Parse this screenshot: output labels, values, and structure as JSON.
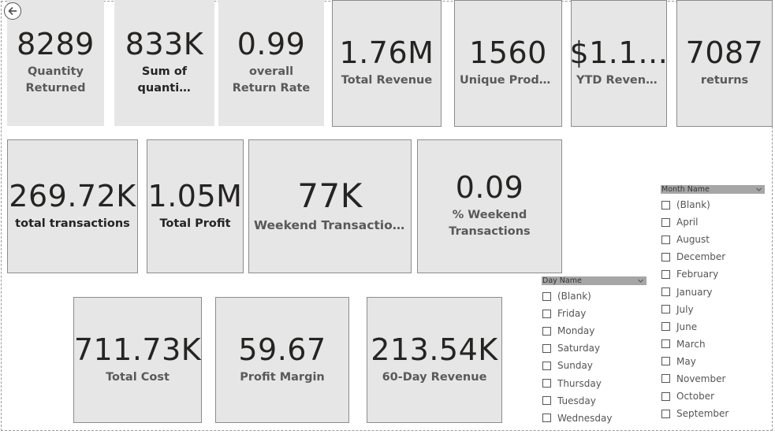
{
  "cards": {
    "quantity_returned": {
      "value": "8289",
      "label": "Quantity Returned"
    },
    "sum_of_quantity": {
      "value": "833K",
      "label": "Sum of quantity"
    },
    "overall_return_rate": {
      "value": "0.99",
      "label": "overall Return Rate"
    },
    "total_revenue": {
      "value": "1.76M",
      "label": "Total Revenue"
    },
    "unique_products": {
      "value": "1560",
      "label": "Unique Produ…"
    },
    "ytd_revenue": {
      "value": "$1.1…",
      "label": "YTD Revenue"
    },
    "returns": {
      "value": "7087",
      "label": "returns"
    },
    "total_transactions": {
      "value": "269.72K",
      "label": "total transactions"
    },
    "total_profit": {
      "value": "1.05M",
      "label": "Total Profit"
    },
    "weekend_transactions": {
      "value": "77K",
      "label": "Weekend Transactions"
    },
    "pct_weekend_transactions": {
      "value": "0.09",
      "label": "% Weekend Transactions"
    },
    "total_cost": {
      "value": "711.73K",
      "label": "Total Cost"
    },
    "profit_margin": {
      "value": "59.67",
      "label": "Profit Margin"
    },
    "revenue_60_day": {
      "value": "213.54K",
      "label": "60-Day Revenue"
    }
  },
  "day_slicer": {
    "title": "Day Name",
    "items": [
      "(Blank)",
      "Friday",
      "Monday",
      "Saturday",
      "Sunday",
      "Thursday",
      "Tuesday",
      "Wednesday"
    ]
  },
  "month_slicer": {
    "title": "Month Name",
    "items": [
      "(Blank)",
      "April",
      "August",
      "December",
      "February",
      "January",
      "July",
      "June",
      "March",
      "May",
      "November",
      "October",
      "September"
    ]
  },
  "icons": {
    "back": "back-arrow-icon",
    "dropdown": "chevron-down-icon"
  }
}
